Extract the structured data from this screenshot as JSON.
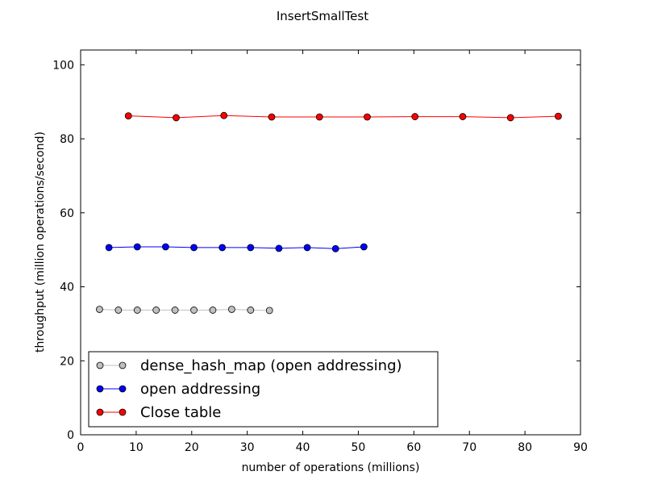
{
  "chart_data": {
    "type": "line",
    "title": "InsertSmallTest",
    "xlabel": "number of operations (millions)",
    "ylabel": "throughput (million operations/second)",
    "xlim": [
      0,
      90
    ],
    "ylim": [
      0,
      104
    ],
    "xticks": [
      "0",
      "10",
      "20",
      "30",
      "40",
      "50",
      "60",
      "70",
      "80",
      "90"
    ],
    "yticks": [
      "0",
      "20",
      "40",
      "60",
      "80",
      "100"
    ],
    "grid": false,
    "legend_position": "lower-left",
    "series": [
      {
        "name": "dense_hash_map (open addressing)",
        "color": "#c0c0c0",
        "marker_color": "#c0c0c0",
        "x": [
          3.4,
          6.8,
          10.2,
          13.6,
          17.0,
          20.4,
          23.8,
          27.2,
          30.6,
          34.0
        ],
        "y": [
          33.9,
          33.7,
          33.7,
          33.7,
          33.7,
          33.7,
          33.7,
          33.9,
          33.7,
          33.6
        ]
      },
      {
        "name": "open addressing",
        "color": "#0000ff",
        "marker_color": "#0000ff",
        "x": [
          5.1,
          10.2,
          15.3,
          20.4,
          25.5,
          30.6,
          35.7,
          40.8,
          45.9,
          51.0
        ],
        "y": [
          50.6,
          50.8,
          50.8,
          50.6,
          50.6,
          50.6,
          50.4,
          50.6,
          50.3,
          50.8
        ]
      },
      {
        "name": "Close table",
        "color": "#ff0000",
        "marker_color": "#ff0000",
        "x": [
          8.6,
          17.2,
          25.8,
          34.4,
          43.0,
          51.6,
          60.2,
          68.8,
          77.4,
          86.0
        ],
        "y": [
          86.2,
          85.7,
          86.3,
          85.9,
          85.9,
          85.9,
          86.0,
          86.0,
          85.7,
          86.1
        ]
      }
    ]
  }
}
